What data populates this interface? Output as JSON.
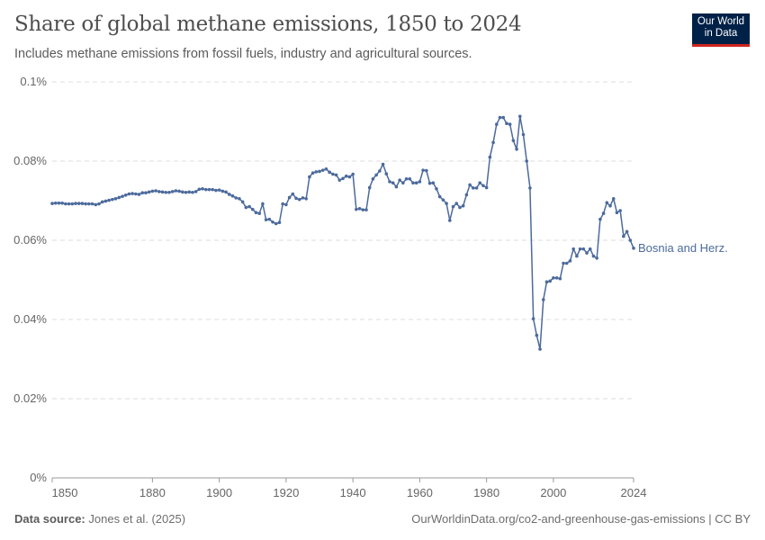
{
  "header": {
    "title": "Share of global methane emissions, 1850 to 2024",
    "subtitle": "Includes methane emissions from fossil fuels, industry and agricultural sources.",
    "logo_text": "Our World in Data"
  },
  "footer": {
    "source_label": "Data source:",
    "source": "Jones et al. (2025)",
    "url": "OurWorldinData.org/co2-and-greenhouse-gas-emissions | CC BY"
  },
  "chart_data": {
    "type": "line",
    "title": "Share of global methane emissions, 1850 to 2024",
    "xlabel": "",
    "ylabel": "",
    "ylim": [
      0,
      0.1
    ],
    "xlim": [
      1850,
      2024
    ],
    "grid": "horizontal dashed",
    "y_ticks": [
      {
        "v": 0,
        "label": "0%"
      },
      {
        "v": 0.02,
        "label": "0.02%"
      },
      {
        "v": 0.04,
        "label": "0.04%"
      },
      {
        "v": 0.06,
        "label": "0.06%"
      },
      {
        "v": 0.08,
        "label": "0.08%"
      },
      {
        "v": 0.1,
        "label": "0.1%"
      }
    ],
    "x_ticks": [
      {
        "v": 1850,
        "label": "1850"
      },
      {
        "v": 1880,
        "label": "1880"
      },
      {
        "v": 1900,
        "label": "1900"
      },
      {
        "v": 1920,
        "label": "1920"
      },
      {
        "v": 1940,
        "label": "1940"
      },
      {
        "v": 1960,
        "label": "1960"
      },
      {
        "v": 1980,
        "label": "1980"
      },
      {
        "v": 2000,
        "label": "2000"
      },
      {
        "v": 2024,
        "label": "2024"
      }
    ],
    "series": [
      {
        "name": "Bosnia and Herz.",
        "color": "#4c6a9c",
        "start_year": 1850,
        "unit": "%",
        "values": [
          0.0693,
          0.0694,
          0.0694,
          0.0694,
          0.0692,
          0.0692,
          0.0692,
          0.0693,
          0.0693,
          0.0693,
          0.0692,
          0.0692,
          0.0692,
          0.069,
          0.0692,
          0.0697,
          0.0699,
          0.0701,
          0.0703,
          0.0705,
          0.0708,
          0.0711,
          0.0714,
          0.0717,
          0.0718,
          0.0717,
          0.0716,
          0.072,
          0.072,
          0.0722,
          0.0724,
          0.0725,
          0.0723,
          0.0722,
          0.0721,
          0.0721,
          0.0723,
          0.0725,
          0.0724,
          0.0722,
          0.0721,
          0.0722,
          0.0721,
          0.0723,
          0.0729,
          0.073,
          0.0728,
          0.0728,
          0.0728,
          0.0726,
          0.0727,
          0.0724,
          0.0722,
          0.0716,
          0.0712,
          0.0707,
          0.0705,
          0.0697,
          0.0683,
          0.0685,
          0.0678,
          0.067,
          0.0668,
          0.0692,
          0.0652,
          0.0653,
          0.0646,
          0.0642,
          0.0645,
          0.0692,
          0.069,
          0.0708,
          0.0717,
          0.0706,
          0.0703,
          0.0707,
          0.0705,
          0.076,
          0.077,
          0.0773,
          0.0774,
          0.0777,
          0.078,
          0.0772,
          0.0767,
          0.0765,
          0.0752,
          0.0756,
          0.0762,
          0.076,
          0.0767,
          0.0678,
          0.068,
          0.0677,
          0.0677,
          0.0733,
          0.0755,
          0.0765,
          0.0775,
          0.0792,
          0.0768,
          0.0748,
          0.0745,
          0.0735,
          0.0752,
          0.0745,
          0.0755,
          0.0755,
          0.0745,
          0.0745,
          0.0748,
          0.0777,
          0.0776,
          0.0744,
          0.0745,
          0.073,
          0.071,
          0.0702,
          0.0693,
          0.065,
          0.0685,
          0.0693,
          0.0683,
          0.0687,
          0.0715,
          0.074,
          0.0732,
          0.0732,
          0.0745,
          0.0738,
          0.0733,
          0.081,
          0.0847,
          0.0893,
          0.091,
          0.091,
          0.0895,
          0.0893,
          0.0852,
          0.083,
          0.0913,
          0.0867,
          0.08,
          0.0732,
          0.0402,
          0.036,
          0.0325,
          0.045,
          0.0495,
          0.0497,
          0.0505,
          0.0505,
          0.0503,
          0.0542,
          0.0542,
          0.0548,
          0.0578,
          0.056,
          0.0578,
          0.0578,
          0.0568,
          0.0578,
          0.056,
          0.0555,
          0.0653,
          0.0668,
          0.0695,
          0.0687,
          0.0705,
          0.067,
          0.0675,
          0.061,
          0.0622,
          0.06,
          0.058
        ]
      }
    ]
  }
}
